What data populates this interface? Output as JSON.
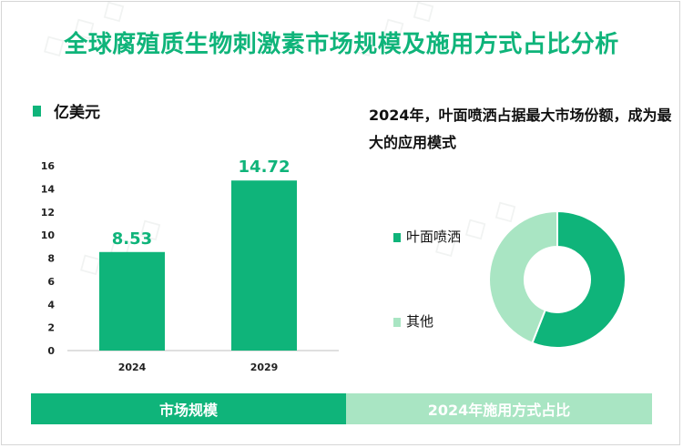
{
  "title": "全球腐殖质生物刺激素市场规模及施用方式占比分析",
  "legend": {
    "label": "亿美元",
    "color": "#0fb47a"
  },
  "headline": "2024年，叶面喷洒占据最大市场份额，成为最大的应用模式",
  "colors": {
    "primary": "#0fb47a",
    "secondary": "#a9e5c3"
  },
  "chart_data": [
    {
      "type": "bar",
      "categories": [
        "2024",
        "2029"
      ],
      "values": [
        8.53,
        14.72
      ],
      "data_labels": [
        "8.53",
        "14.72"
      ],
      "ylim": [
        0,
        16
      ],
      "yticks": [
        0,
        2,
        4,
        6,
        8,
        10,
        12,
        14,
        16
      ],
      "legend": "亿美元"
    },
    {
      "type": "pie",
      "donut": true,
      "labels": [
        "叶面喷洒",
        "其他"
      ],
      "values": [
        56,
        44
      ],
      "colors": [
        "#0fb47a",
        "#a9e5c3"
      ]
    }
  ],
  "footer": {
    "left": "市场规模",
    "right": "2024年施用方式占比"
  }
}
